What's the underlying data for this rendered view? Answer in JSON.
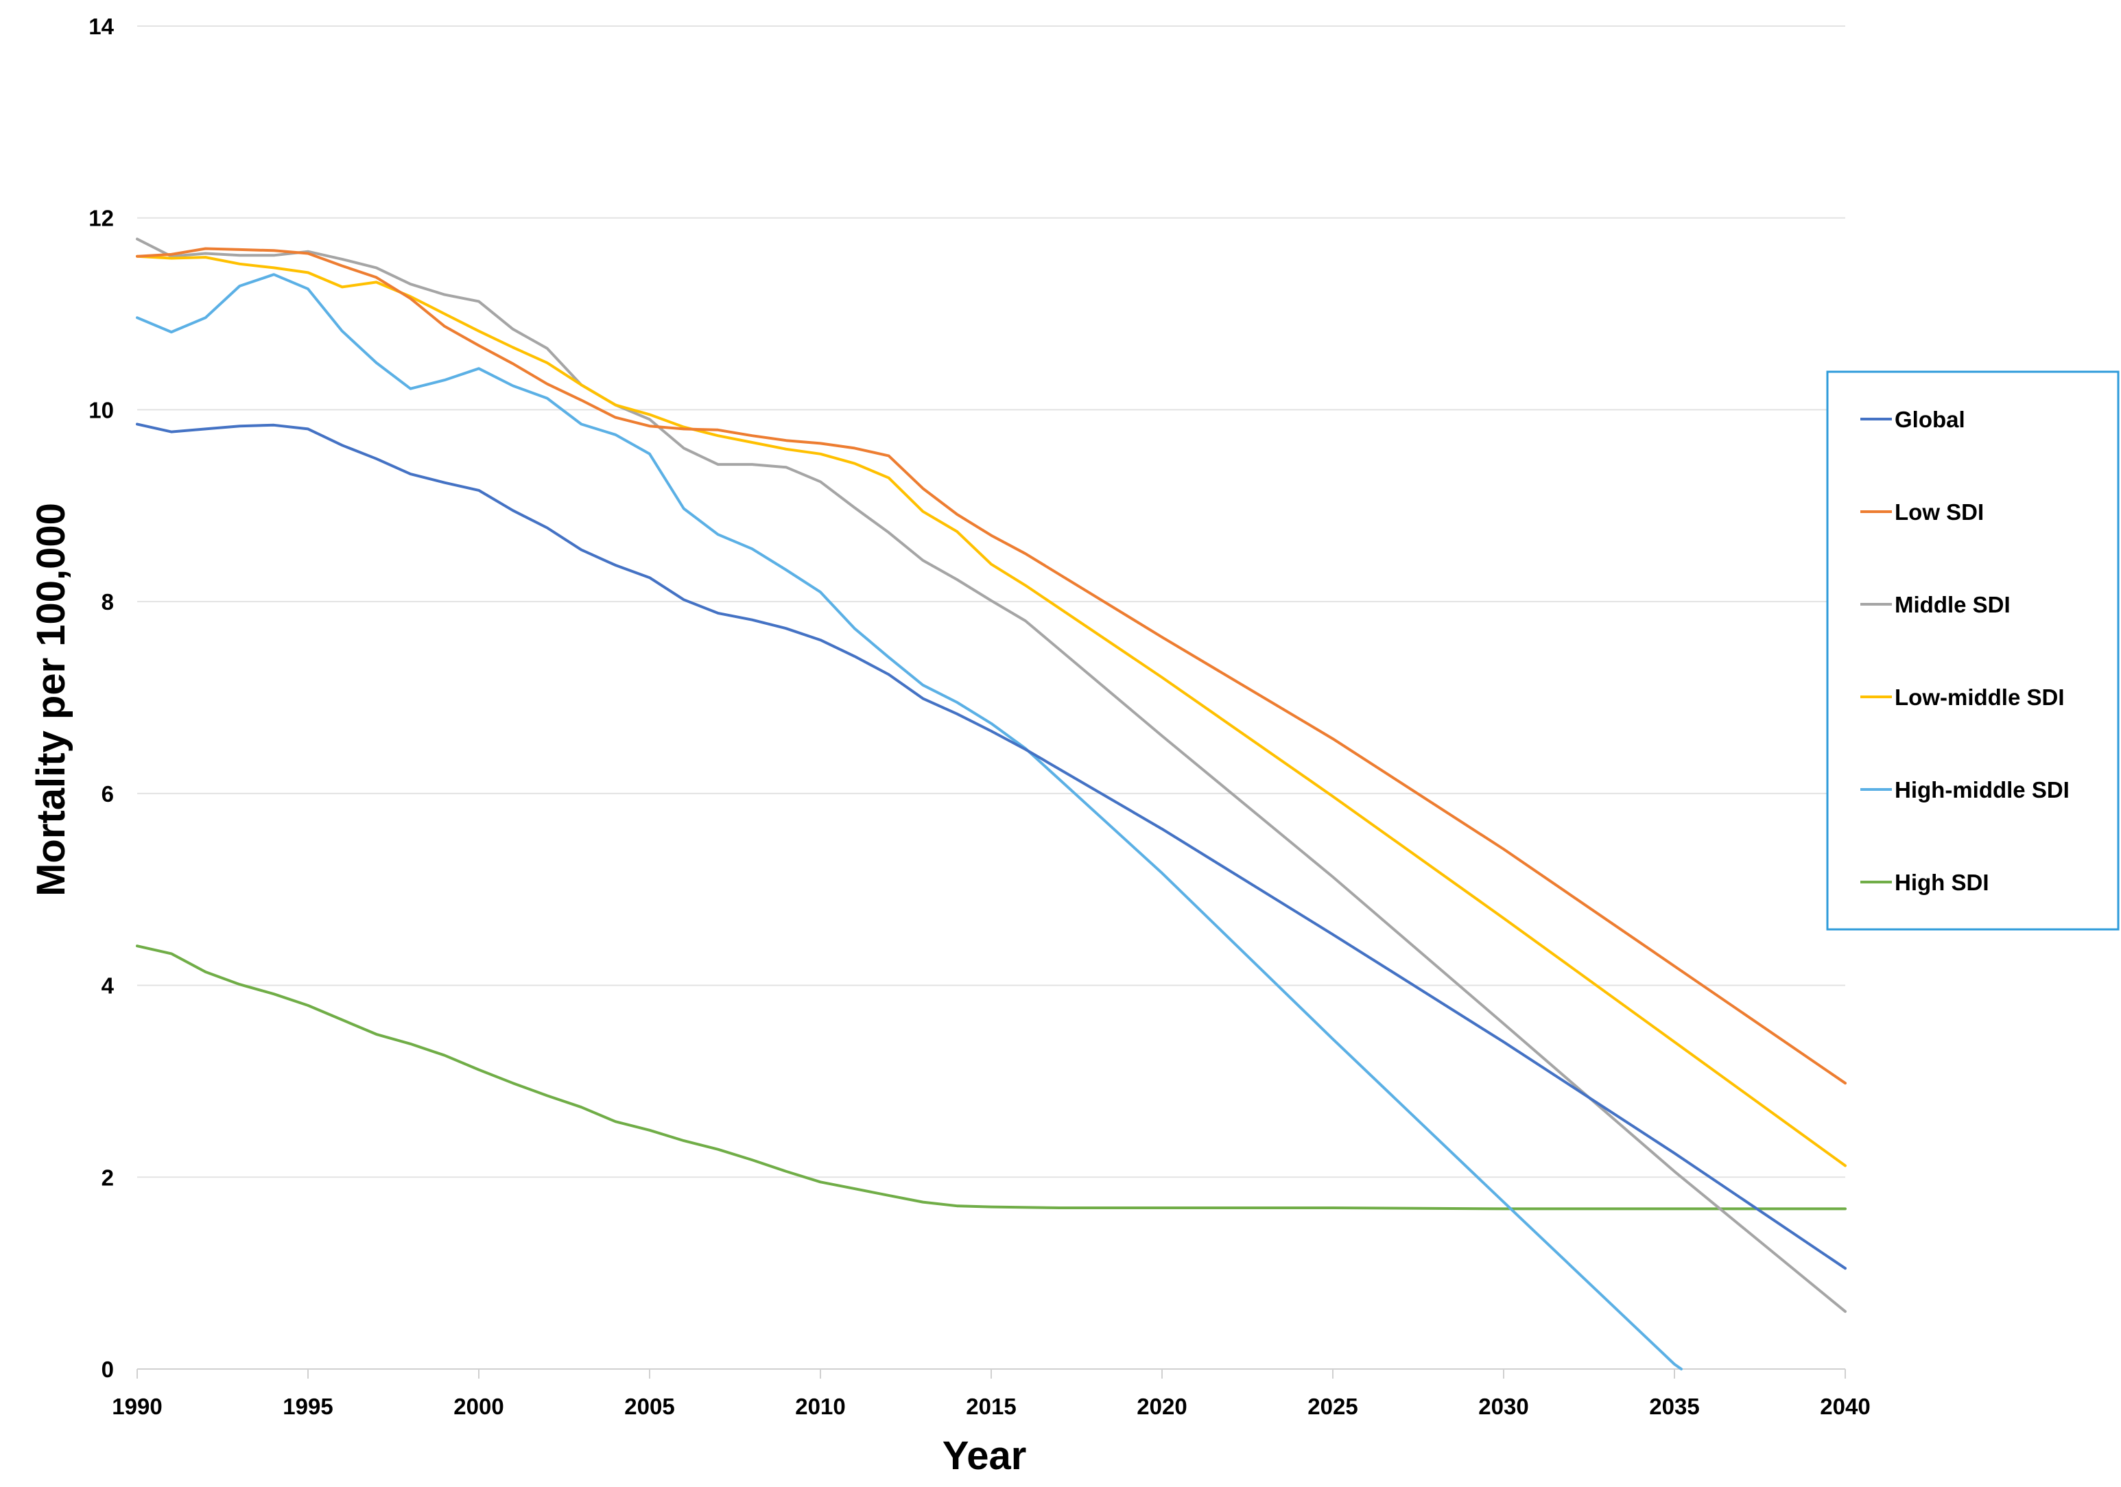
{
  "chart_data": {
    "type": "line",
    "title": "",
    "xlabel": "Year",
    "ylabel": "Mortality  per 100,000",
    "xlim": [
      1990,
      2040
    ],
    "ylim": [
      0,
      14
    ],
    "xticks": [
      "1990",
      "1995",
      "2000",
      "2005",
      "2010",
      "2015",
      "2020",
      "2025",
      "2030",
      "2035",
      "2040"
    ],
    "yticks": [
      "0",
      "2",
      "4",
      "6",
      "8",
      "10",
      "12",
      "14"
    ],
    "grid": "horizontal",
    "legend_position": "right",
    "series": [
      {
        "name": "Global",
        "color": "#4472C4",
        "points": [
          [
            1990,
            9.85
          ],
          [
            1991,
            9.77
          ],
          [
            1992,
            9.8
          ],
          [
            1993,
            9.83
          ],
          [
            1994,
            9.84
          ],
          [
            1995,
            9.8
          ],
          [
            1996,
            9.63
          ],
          [
            1997,
            9.49
          ],
          [
            1998,
            9.33
          ],
          [
            1999,
            9.24
          ],
          [
            2000,
            9.16
          ],
          [
            2001,
            8.95
          ],
          [
            2002,
            8.77
          ],
          [
            2003,
            8.54
          ],
          [
            2004,
            8.38
          ],
          [
            2005,
            8.25
          ],
          [
            2006,
            8.02
          ],
          [
            2007,
            7.88
          ],
          [
            2008,
            7.81
          ],
          [
            2009,
            7.72
          ],
          [
            2010,
            7.6
          ],
          [
            2011,
            7.43
          ],
          [
            2012,
            7.24
          ],
          [
            2013,
            6.99
          ],
          [
            2014,
            6.83
          ],
          [
            2015,
            6.65
          ],
          [
            2016,
            6.46
          ],
          [
            2020,
            5.63
          ],
          [
            2025,
            4.53
          ],
          [
            2030,
            3.41
          ],
          [
            2035,
            2.25
          ],
          [
            2040,
            1.05
          ]
        ]
      },
      {
        "name": "Low SDI",
        "color": "#ED7D31",
        "points": [
          [
            1990,
            11.6
          ],
          [
            1991,
            11.62
          ],
          [
            1992,
            11.68
          ],
          [
            1993,
            11.67
          ],
          [
            1994,
            11.66
          ],
          [
            1995,
            11.63
          ],
          [
            1996,
            11.5
          ],
          [
            1997,
            11.38
          ],
          [
            1998,
            11.16
          ],
          [
            1999,
            10.87
          ],
          [
            2000,
            10.67
          ],
          [
            2001,
            10.48
          ],
          [
            2002,
            10.27
          ],
          [
            2003,
            10.1
          ],
          [
            2004,
            9.92
          ],
          [
            2005,
            9.83
          ],
          [
            2006,
            9.8
          ],
          [
            2007,
            9.79
          ],
          [
            2008,
            9.73
          ],
          [
            2009,
            9.68
          ],
          [
            2010,
            9.65
          ],
          [
            2011,
            9.6
          ],
          [
            2012,
            9.52
          ],
          [
            2013,
            9.18
          ],
          [
            2014,
            8.91
          ],
          [
            2015,
            8.69
          ],
          [
            2016,
            8.5
          ],
          [
            2020,
            7.63
          ],
          [
            2025,
            6.57
          ],
          [
            2030,
            5.42
          ],
          [
            2035,
            4.2
          ],
          [
            2040,
            2.98
          ]
        ]
      },
      {
        "name": "Middle SDI",
        "color": "#A5A5A5",
        "points": [
          [
            1990,
            11.78
          ],
          [
            1991,
            11.6
          ],
          [
            1992,
            11.63
          ],
          [
            1993,
            11.61
          ],
          [
            1994,
            11.61
          ],
          [
            1995,
            11.65
          ],
          [
            1996,
            11.57
          ],
          [
            1997,
            11.48
          ],
          [
            1998,
            11.31
          ],
          [
            1999,
            11.2
          ],
          [
            2000,
            11.13
          ],
          [
            2001,
            10.84
          ],
          [
            2002,
            10.64
          ],
          [
            2003,
            10.26
          ],
          [
            2004,
            10.05
          ],
          [
            2005,
            9.9
          ],
          [
            2006,
            9.6
          ],
          [
            2007,
            9.43
          ],
          [
            2008,
            9.43
          ],
          [
            2009,
            9.4
          ],
          [
            2010,
            9.25
          ],
          [
            2011,
            8.98
          ],
          [
            2012,
            8.72
          ],
          [
            2013,
            8.43
          ],
          [
            2014,
            8.23
          ],
          [
            2015,
            8.01
          ],
          [
            2016,
            7.8
          ],
          [
            2020,
            6.6
          ],
          [
            2025,
            5.13
          ],
          [
            2030,
            3.6
          ],
          [
            2035,
            2.06
          ],
          [
            2040,
            0.6
          ]
        ]
      },
      {
        "name": "Low-middle SDI",
        "color": "#FFC000",
        "points": [
          [
            1990,
            11.6
          ],
          [
            1991,
            11.58
          ],
          [
            1992,
            11.59
          ],
          [
            1993,
            11.52
          ],
          [
            1994,
            11.48
          ],
          [
            1995,
            11.43
          ],
          [
            1996,
            11.28
          ],
          [
            1997,
            11.33
          ],
          [
            1998,
            11.18
          ],
          [
            1999,
            11.0
          ],
          [
            2000,
            10.82
          ],
          [
            2001,
            10.65
          ],
          [
            2002,
            10.49
          ],
          [
            2003,
            10.26
          ],
          [
            2004,
            10.05
          ],
          [
            2005,
            9.95
          ],
          [
            2006,
            9.82
          ],
          [
            2007,
            9.73
          ],
          [
            2008,
            9.66
          ],
          [
            2009,
            9.59
          ],
          [
            2010,
            9.54
          ],
          [
            2011,
            9.44
          ],
          [
            2012,
            9.29
          ],
          [
            2013,
            8.94
          ],
          [
            2014,
            8.73
          ],
          [
            2015,
            8.39
          ],
          [
            2016,
            8.17
          ],
          [
            2020,
            7.21
          ],
          [
            2025,
            5.97
          ],
          [
            2030,
            4.7
          ],
          [
            2035,
            3.41
          ],
          [
            2040,
            2.12
          ]
        ]
      },
      {
        "name": "High-middle SDI",
        "color": "#5BB0E5",
        "points": [
          [
            1990,
            10.96
          ],
          [
            1991,
            10.81
          ],
          [
            1992,
            10.96
          ],
          [
            1993,
            11.29
          ],
          [
            1994,
            11.41
          ],
          [
            1995,
            11.26
          ],
          [
            1996,
            10.82
          ],
          [
            1997,
            10.49
          ],
          [
            1998,
            10.22
          ],
          [
            1999,
            10.31
          ],
          [
            2000,
            10.43
          ],
          [
            2001,
            10.25
          ],
          [
            2002,
            10.12
          ],
          [
            2003,
            9.85
          ],
          [
            2004,
            9.74
          ],
          [
            2005,
            9.54
          ],
          [
            2006,
            8.97
          ],
          [
            2007,
            8.7
          ],
          [
            2008,
            8.55
          ],
          [
            2009,
            8.33
          ],
          [
            2010,
            8.1
          ],
          [
            2011,
            7.72
          ],
          [
            2012,
            7.42
          ],
          [
            2013,
            7.13
          ],
          [
            2014,
            6.95
          ],
          [
            2015,
            6.73
          ],
          [
            2016,
            6.47
          ],
          [
            2020,
            5.17
          ],
          [
            2025,
            3.44
          ],
          [
            2030,
            1.74
          ],
          [
            2035,
            0.05
          ],
          [
            2035.2,
            0.0
          ]
        ]
      },
      {
        "name": "High SDI",
        "color": "#70AD47",
        "points": [
          [
            1990,
            4.41
          ],
          [
            1991,
            4.33
          ],
          [
            1992,
            4.14
          ],
          [
            1993,
            4.01
          ],
          [
            1994,
            3.91
          ],
          [
            1995,
            3.79
          ],
          [
            1996,
            3.64
          ],
          [
            1997,
            3.49
          ],
          [
            1998,
            3.39
          ],
          [
            1999,
            3.27
          ],
          [
            2000,
            3.12
          ],
          [
            2001,
            2.98
          ],
          [
            2002,
            2.85
          ],
          [
            2003,
            2.73
          ],
          [
            2004,
            2.58
          ],
          [
            2005,
            2.49
          ],
          [
            2006,
            2.38
          ],
          [
            2007,
            2.29
          ],
          [
            2008,
            2.18
          ],
          [
            2009,
            2.06
          ],
          [
            2010,
            1.95
          ],
          [
            2011,
            1.88
          ],
          [
            2012,
            1.81
          ],
          [
            2013,
            1.74
          ],
          [
            2014,
            1.7
          ],
          [
            2015,
            1.69
          ],
          [
            2017,
            1.68
          ],
          [
            2020,
            1.68
          ],
          [
            2025,
            1.68
          ],
          [
            2030,
            1.67
          ],
          [
            2035,
            1.67
          ],
          [
            2040,
            1.67
          ]
        ]
      }
    ]
  }
}
